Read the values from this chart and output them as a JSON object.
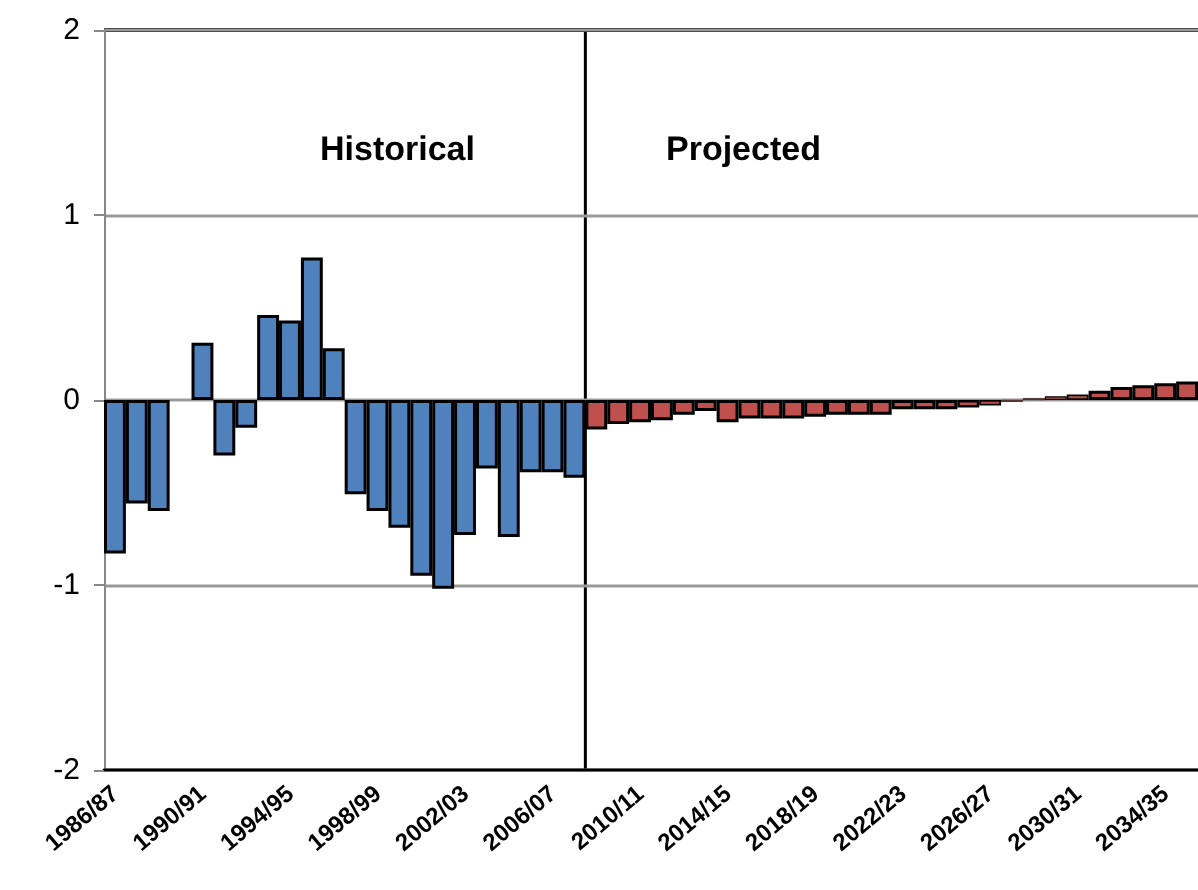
{
  "chart_data": {
    "type": "bar",
    "categories": [
      "1986/87",
      null,
      null,
      null,
      "1990/91",
      null,
      null,
      null,
      "1994/95",
      null,
      null,
      null,
      "1998/99",
      null,
      null,
      null,
      "2002/03",
      null,
      null,
      null,
      "2006/07",
      null,
      null,
      null,
      "2010/11",
      null,
      null,
      null,
      "2014/15",
      null,
      null,
      null,
      "2018/19",
      null,
      null,
      null,
      "2022/23",
      null,
      null,
      null,
      "2026/27",
      null,
      null,
      null,
      "2030/31",
      null,
      null,
      null,
      "2034/35",
      null
    ],
    "values": [
      -0.83,
      -0.56,
      -0.6,
      null,
      0.31,
      -0.3,
      -0.15,
      0.46,
      0.43,
      0.77,
      0.28,
      -0.51,
      -0.6,
      -0.69,
      -0.95,
      -1.02,
      -0.73,
      -0.37,
      -0.74,
      -0.39,
      -0.39,
      -0.42,
      -0.16,
      -0.13,
      -0.12,
      -0.11,
      -0.08,
      -0.06,
      -0.12,
      -0.1,
      -0.1,
      -0.1,
      -0.09,
      -0.08,
      -0.08,
      -0.08,
      -0.05,
      -0.05,
      -0.05,
      -0.04,
      -0.03,
      -0.01,
      0.01,
      0.02,
      0.03,
      0.05,
      0.07,
      0.08,
      0.09,
      0.1
    ],
    "colors": [
      "#4f81bd",
      "#4f81bd",
      "#4f81bd",
      "#4f81bd",
      "#4f81bd",
      "#4f81bd",
      "#4f81bd",
      "#4f81bd",
      "#4f81bd",
      "#4f81bd",
      "#4f81bd",
      "#4f81bd",
      "#4f81bd",
      "#4f81bd",
      "#4f81bd",
      "#4f81bd",
      "#4f81bd",
      "#4f81bd",
      "#4f81bd",
      "#4f81bd",
      "#4f81bd",
      "#4f81bd",
      "#c0504d",
      "#c0504d",
      "#c0504d",
      "#c0504d",
      "#c0504d",
      "#c0504d",
      "#c0504d",
      "#c0504d",
      "#c0504d",
      "#c0504d",
      "#c0504d",
      "#c0504d",
      "#c0504d",
      "#c0504d",
      "#c0504d",
      "#c0504d",
      "#c0504d",
      "#c0504d",
      "#c0504d",
      "#c0504d",
      "#c0504d",
      "#c0504d",
      "#c0504d",
      "#c0504d",
      "#c0504d",
      "#c0504d",
      "#c0504d",
      "#c0504d"
    ],
    "ylim": [
      -2,
      2
    ],
    "yticks": [
      -2,
      -1,
      0,
      1,
      2
    ],
    "grid": "y",
    "annotations": [
      "Historical",
      "Projected"
    ]
  }
}
